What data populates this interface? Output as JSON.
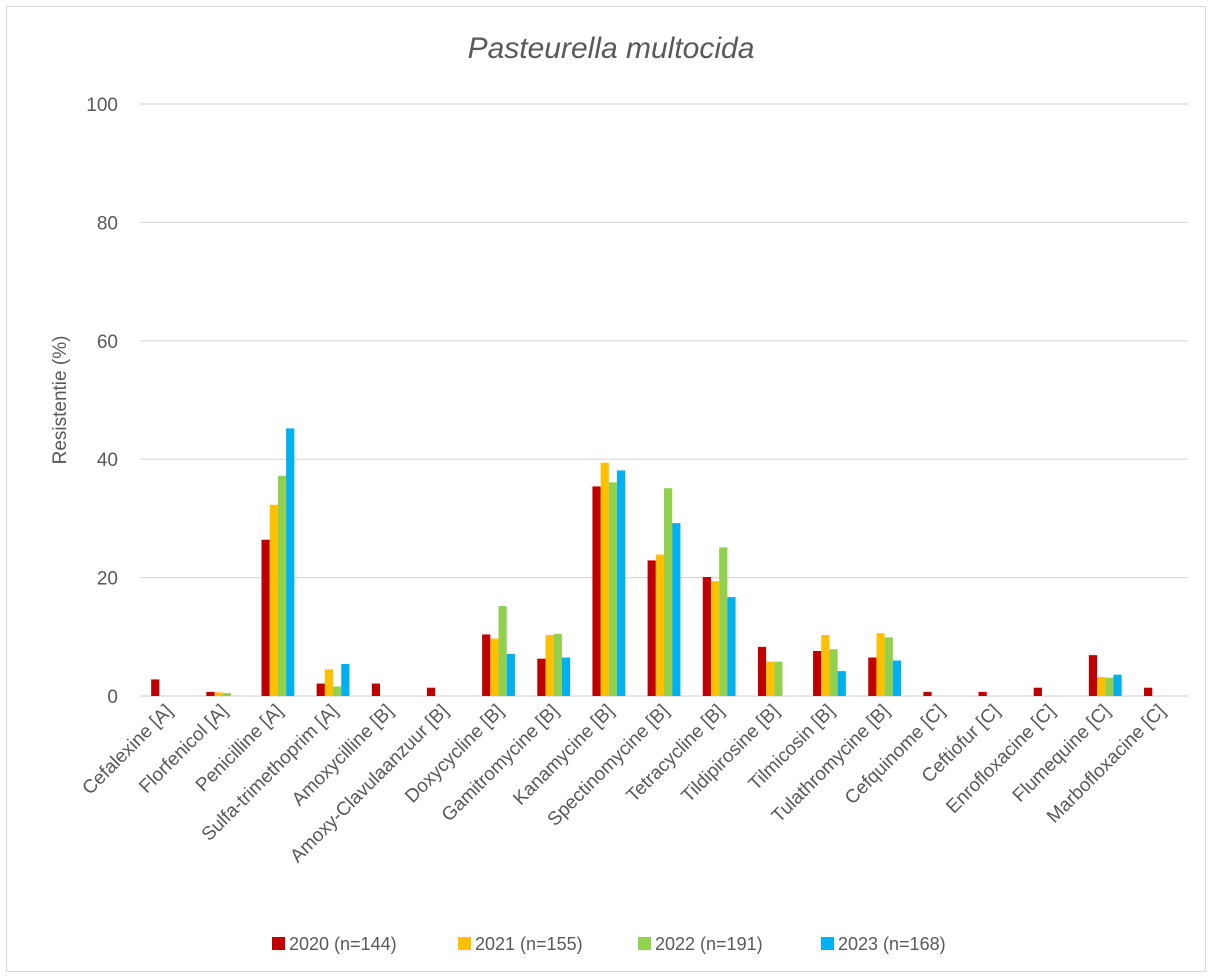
{
  "chart_data": {
    "type": "bar",
    "title": "Pasteurella multocida",
    "xlabel": "",
    "ylabel": "Resistentie (%)",
    "ylim": [
      0,
      100
    ],
    "yticks": [
      0,
      20,
      40,
      60,
      80,
      100
    ],
    "grid": true,
    "legend_position": "bottom",
    "categories": [
      "Cefalexine [A]",
      "Florfenicol [A]",
      "Penicilline [A]",
      "Sulfa-trimethoprim [A]",
      "Amoxycilline  [B]",
      "Amoxy-Clavulaanzuur [B]",
      "Doxycycline [B]",
      "Gamitromycine [B]",
      "Kanamycine [B]",
      "Spectinomycine [B]",
      "Tetracycline [B]",
      "Tildipirosine [B]",
      "Tilmicosin [B]",
      "Tulathromycine [B]",
      "Cefquinome [C]",
      "Ceftiofur [C]",
      "Enrofloxacine [C]",
      "Flumequine [C]",
      "Marbofloxacine [C]"
    ],
    "series": [
      {
        "name": "2020 (n=144)",
        "color": "#c00000",
        "values": [
          2.8,
          0.7,
          26.4,
          2.1,
          2.1,
          1.4,
          10.4,
          6.3,
          35.4,
          22.9,
          20.1,
          8.3,
          7.6,
          6.5,
          0.7,
          0.7,
          1.4,
          6.9,
          1.4
        ]
      },
      {
        "name": "2021 (n=155)",
        "color": "#ffc000",
        "values": [
          0,
          0.6,
          32.3,
          4.5,
          0,
          0,
          9.7,
          10.3,
          39.4,
          23.9,
          19.4,
          5.8,
          10.3,
          10.6,
          0,
          0,
          0,
          3.2,
          0
        ]
      },
      {
        "name": "2022 (n=191)",
        "color": "#92d050",
        "values": [
          0,
          0.5,
          37.2,
          1.6,
          0,
          0,
          15.2,
          10.5,
          36.1,
          35.1,
          25.1,
          5.8,
          7.9,
          9.9,
          0,
          0,
          0,
          3.1,
          0
        ]
      },
      {
        "name": "2023 (n=168)",
        "color": "#00b0f0",
        "values": [
          0,
          0,
          45.2,
          5.4,
          0,
          0,
          7.1,
          6.5,
          38.1,
          29.2,
          16.7,
          0,
          4.2,
          6.0,
          0,
          0,
          0,
          3.6,
          0
        ]
      }
    ]
  }
}
